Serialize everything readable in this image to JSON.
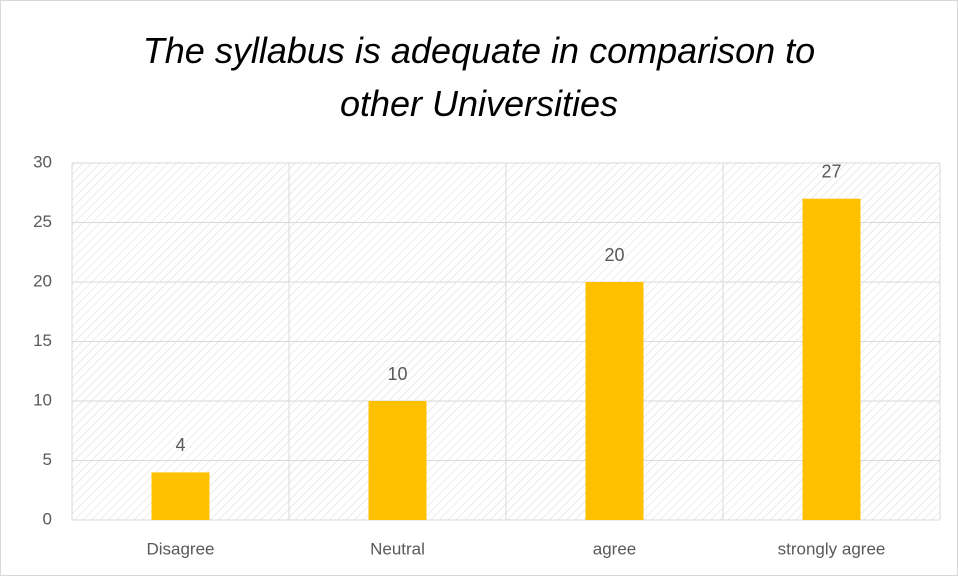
{
  "chart_data": {
    "type": "bar",
    "title": "The syllabus is adequate in comparison to other Universities",
    "categories": [
      "Disagree",
      "Neutral",
      "agree",
      "strongly agree"
    ],
    "values": [
      4,
      10,
      20,
      27
    ],
    "color": "#ffc000",
    "ylim": [
      0,
      30
    ],
    "yticks": [
      0,
      5,
      10,
      15,
      20,
      25,
      30
    ],
    "grid": true
  }
}
